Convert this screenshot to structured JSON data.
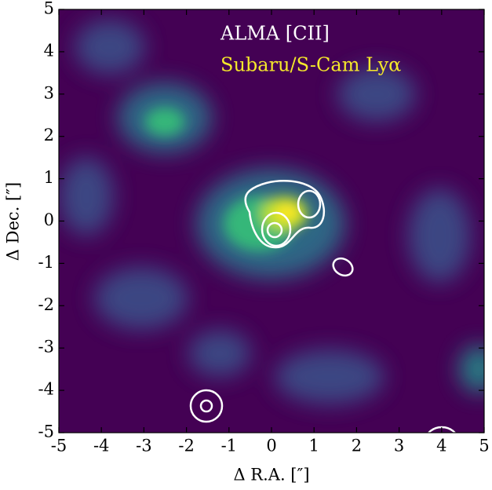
{
  "chart_data": {
    "type": "image",
    "xlabel": "Δ R.A. [″]",
    "ylabel": "Δ Dec. [″]",
    "xlim": [
      -5,
      5
    ],
    "ylim": [
      -5,
      5
    ],
    "xticks": [
      -5,
      -4,
      -3,
      -2,
      -1,
      0,
      1,
      2,
      3,
      4,
      5
    ],
    "yticks": [
      -5,
      -4,
      -3,
      -2,
      -1,
      0,
      1,
      2,
      3,
      4,
      5
    ],
    "labels": [
      {
        "text": "ALMA [CII]",
        "color": "#ffffff"
      },
      {
        "text": "Subaru/S-Cam Lyα",
        "color": "#f5e92a"
      }
    ]
  }
}
